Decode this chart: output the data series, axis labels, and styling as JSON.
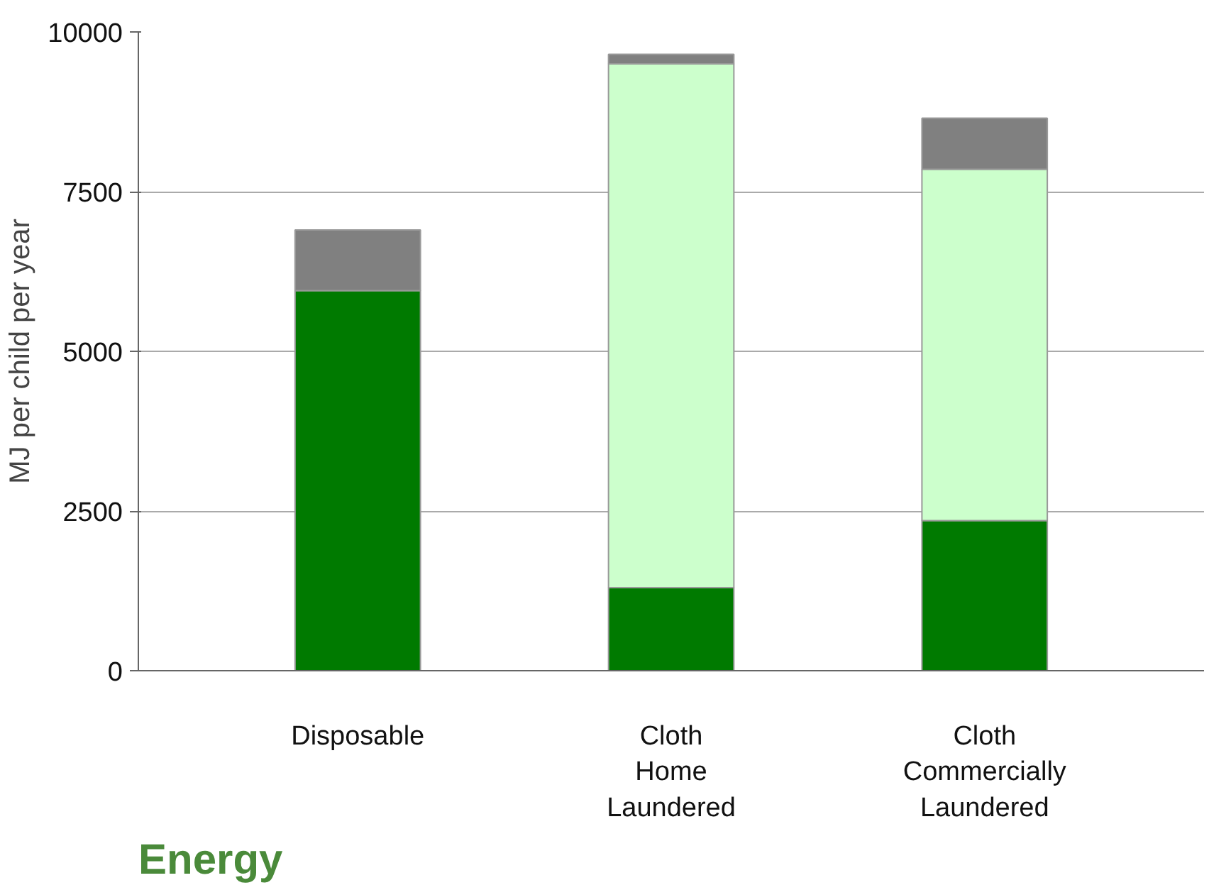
{
  "chart_data": {
    "type": "bar",
    "title": "Energy",
    "ylabel": "MJ per child per year",
    "categories": [
      "Disposable",
      "Cloth Home Laundered",
      "Cloth Commercially Laundered"
    ],
    "stacked": true,
    "series": [
      {
        "color": "#007a00",
        "values": [
          5950,
          1300,
          2350
        ]
      },
      {
        "color": "#ccffcc",
        "values": [
          0,
          8200,
          5500
        ]
      },
      {
        "color": "#808080",
        "values": [
          950,
          150,
          800
        ]
      }
    ],
    "ylim": [
      0,
      10000
    ],
    "yticks": [
      0,
      2500,
      5000,
      7500,
      10000
    ],
    "grid": "y"
  }
}
